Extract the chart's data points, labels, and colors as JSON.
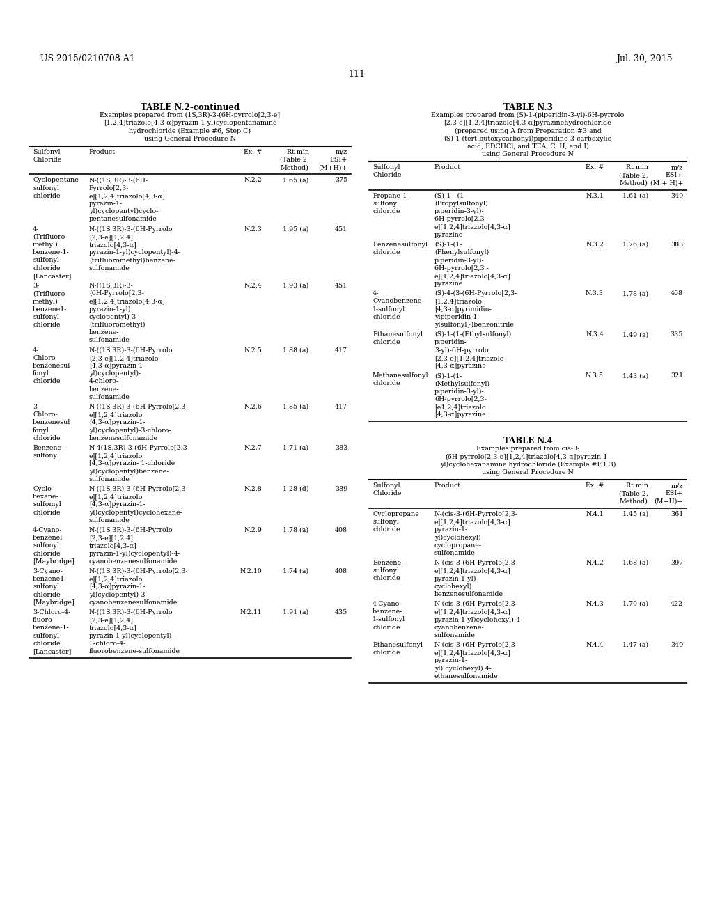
{
  "header_left": "US 2015/0210708 A1",
  "header_right": "Jul. 30, 2015",
  "page_number": "111",
  "background_color": "#ffffff",
  "text_color": "#000000",
  "font_size": 7.5,
  "table_n2_title": "TABLE N.2-continued",
  "table_n2_subtitle_lines": [
    "Examples prepared from (1S,3R)-3-(6H-pyrrolo[2,3-e]",
    "[1,2,4]triazolo[4,3-α]pyrazin-1-yl)cyclopentanamine",
    "hydrochloride (Example #6, Step C)",
    "using General Procedure N"
  ],
  "table_n2_col_headers": [
    [
      "Sulfonyl",
      "Chloride"
    ],
    [
      "Product"
    ],
    [
      "Ex. #"
    ],
    [
      "Rt min",
      "(Table 2,",
      "Method)"
    ],
    [
      "m/z",
      "ESI+",
      "(M+H)+"
    ]
  ],
  "table_n2_rows": [
    {
      "col0": [
        "Cyclopentane",
        "sulfonyl",
        "chloride"
      ],
      "col1": [
        "N-((1S,3R)-3-(6H-",
        "Pyrrolo[2,3-",
        "e][1,2,4]triazolo[4,3-α]",
        "pyrazin-1-",
        "yl)cyclopentyl)cyclo-",
        "pentanesulfonamide"
      ],
      "col2": [
        "N.2.2"
      ],
      "col3": [
        "1.65 (a)"
      ],
      "col4": [
        "375"
      ]
    },
    {
      "col0": [
        "4-",
        "(Trifluoro-",
        "methyl)",
        "benzene-1-",
        "sulfonyl",
        "chloride",
        "[Lancaster]"
      ],
      "col1": [
        "N-((1S,3R)-3-(6H-Pyrrolo",
        "[2,3-e][1,2,4]",
        "triazolo[4,3-α]",
        "pyrazin-1-yl)cyclopentyl)-4-",
        "(trifluoromethyl)benzene-",
        "sulfonamide"
      ],
      "col2": [
        "N.2.3"
      ],
      "col3": [
        "1.95 (a)"
      ],
      "col4": [
        "451"
      ]
    },
    {
      "col0": [
        "3-",
        "(Trifluoro-",
        "methyl)",
        "benzene1-",
        "sulfonyl",
        "chloride"
      ],
      "col1": [
        "N-((1S,3R)-3-",
        "(6H-Pyrrolo[2,3-",
        "e][1,2,4]triazolo[4,3-α]",
        "pyrazin-1-yl)",
        "cyclopentyl)-3-",
        "(trifluoromethyl)",
        "benzene-",
        "sulfonamide"
      ],
      "col2": [
        "N.2.4"
      ],
      "col3": [
        "1.93 (a)"
      ],
      "col4": [
        "451"
      ]
    },
    {
      "col0": [
        "4-",
        "Chloro",
        "benzenesul-",
        "fonyl",
        "chloride"
      ],
      "col1": [
        "N-((1S,3R)-3-(6H-Pyrrolo",
        "[2,3-e][1,2,4]triazolo",
        "[4,3-α]pyrazin-1-",
        "yl)cyclopentyl)-",
        "4-chloro-",
        "benzene-",
        "sulfonamide"
      ],
      "col2": [
        "N.2.5"
      ],
      "col3": [
        "1.88 (a)"
      ],
      "col4": [
        "417"
      ]
    },
    {
      "col0": [
        "3-",
        "Chloro-",
        "benzenesul",
        "fonyl",
        "chloride"
      ],
      "col1": [
        "N-((1S,3R)-3-(6H-Pyrrolo[2,3-",
        "e][1,2,4]triazolo",
        "[4,3-α]pyrazin-1-",
        "yl)cyclopentyl)-3-chloro-",
        "benzenesulfonamide"
      ],
      "col2": [
        "N.2.6"
      ],
      "col3": [
        "1.85 (a)"
      ],
      "col4": [
        "417"
      ]
    },
    {
      "col0": [
        "Benzene-",
        "sulfonyl"
      ],
      "col1": [
        "N-4(1S,3R)-3-(6H-Pyrrolo[2,3-",
        "e][1,2,4]triazolo",
        "[4,3-α]pyrazin- 1-chloride",
        "yl)cyclopentyl)benzene-",
        "sulfonamide"
      ],
      "col2": [
        "N.2.7"
      ],
      "col3": [
        "1.71 (a)"
      ],
      "col4": [
        "383"
      ]
    },
    {
      "col0": [
        "Cyclo-",
        "hexane-",
        "sulfomyl",
        "chloride"
      ],
      "col1": [
        "N-((1S,3R)-3-(6H-Pyrrolo[2,3-",
        "e][1,2,4]triazolo",
        "[4,3-α]pyrazin-1-",
        "yl)cyclopentyl)cyclohexane-",
        "sulfonamide"
      ],
      "col2": [
        "N.2.8"
      ],
      "col3": [
        "1.28 (d)"
      ],
      "col4": [
        "389"
      ]
    },
    {
      "col0": [
        "4-Cyano-",
        "benzenel",
        "sulfonyl",
        "chloride",
        "[Maybridge]"
      ],
      "col1": [
        "N-((1S,3R)-3-(6H-Pyrrolo",
        "[2,3-e][1,2,4]",
        "triazolo[4,3-α]",
        "pyrazin-1-yl)cyclopentyl)-4-",
        "cyanobenzenesulfonamide"
      ],
      "col2": [
        "N.2.9"
      ],
      "col3": [
        "1.78 (a)"
      ],
      "col4": [
        "408"
      ]
    },
    {
      "col0": [
        "3-Cyano-",
        "benzene1-",
        "sulfonyl",
        "chloride",
        "[Maybridge]"
      ],
      "col1": [
        "N-((1S,3R)-3-(6H-Pyrrolo[2,3-",
        "e][1,2,4]triazolo",
        "[4,3-α]pyrazin-1-",
        "yl)cyclopentyl)-3-",
        "cyanobenzenesulfonamide"
      ],
      "col2": [
        "N.2.10"
      ],
      "col3": [
        "1.74 (a)"
      ],
      "col4": [
        "408"
      ]
    },
    {
      "col0": [
        "3-Chloro-4-",
        "fluoro-",
        "benzene-1-",
        "sulfonyl",
        "chloride",
        "[Lancaster]"
      ],
      "col1": [
        "N-((1S,3R)-3-(6H-Pyrrolo",
        "[2,3-e][1,2,4]",
        "triazolo[4,3-α]",
        "pyrazin-1-yl)cyclopentyl)-",
        "3-chloro-4-",
        "fluorobenzene-sulfonamide"
      ],
      "col2": [
        "N.2.11"
      ],
      "col3": [
        "1.91 (a)"
      ],
      "col4": [
        "435"
      ]
    }
  ],
  "table_n3_title": "TABLE N.3",
  "table_n3_subtitle_lines": [
    "Examples prepared from (S)-1-(piperidin-3-yl)-6H-pyrrolo",
    "[2,3-e][1,2,4]triazolo[4,3-α]pyrazinehydrochloride",
    "(prepared using A from Preparation #3 and",
    "(S)-1-(tert-butoxycarbonyl)piperidine-3-carboxylic",
    "acid, EDCHCl, and TEA, C, H, and I)",
    "using General Procedure N"
  ],
  "table_n3_col_headers": [
    [
      "Sulfonyl",
      "Chloride"
    ],
    [
      "Product"
    ],
    [
      "Ex. #"
    ],
    [
      "Rt min",
      "(Table 2,",
      "Method)"
    ],
    [
      "m/z",
      "ESI+",
      "(M + H)+"
    ]
  ],
  "table_n3_rows": [
    {
      "col0": [
        "Propane-1-",
        "sulfonyl",
        "chloride"
      ],
      "col1": [
        "(S)-1 - (1 -",
        "(Propylsulfonyl)",
        "piperidin-3-yl)-",
        "6H-pyrrolo[2,3 -",
        "e][1,2,4]triazolo[4,3-α]",
        "pyrazine"
      ],
      "col2": [
        "N.3.1"
      ],
      "col3": [
        "1.61 (a)"
      ],
      "col4": [
        "349"
      ]
    },
    {
      "col0": [
        "Benzenesulfonyl",
        "chloride"
      ],
      "col1": [
        "(S)-1-(1-",
        "(Phenylsulfonyl)",
        "piperidin-3-yl)-",
        "6H-pyrrolo[2,3 -",
        "e][1,2,4]triazolo[4,3-α]",
        "pyrazine"
      ],
      "col2": [
        "N.3.2"
      ],
      "col3": [
        "1.76 (a)"
      ],
      "col4": [
        "383"
      ]
    },
    {
      "col0": [
        "4-",
        "Cyanobenzene-",
        "1-sulfonyl",
        "chloride"
      ],
      "col1": [
        "(S)-4-(3-(6H-Pyrrolo[2,3-",
        "[1,2,4]triazolo",
        "[4,3-α]pyrimidin-",
        "ylpiperidin-1-",
        "ylsulfonyl})benzonitrile"
      ],
      "col2": [
        "N.3.3"
      ],
      "col3": [
        "1.78 (a)"
      ],
      "col4": [
        "408"
      ]
    },
    {
      "col0": [
        "Ethanesulfonyl",
        "chloride"
      ],
      "col1": [
        "(S)-1-(1-(Ethylsulfonyl)",
        "piperidin-",
        "3-yl)-6H-pyrrolo",
        "[2,3-e][1,2,4]triazolo",
        "[4,3-α]pyrazine"
      ],
      "col2": [
        "N.3.4"
      ],
      "col3": [
        "1.49 (a)"
      ],
      "col4": [
        "335"
      ]
    },
    {
      "col0": [
        "Methanesulfonyl",
        "chloride"
      ],
      "col1": [
        "(S)-1-(1-",
        "(Methylsulfonyl)",
        "piperidin-3-yl)-",
        "6H-pyrrolo[2,3-",
        "[e1,2,4]triazolo",
        "[4,3-α]pyrazine"
      ],
      "col2": [
        "N.3.5"
      ],
      "col3": [
        "1.43 (a)"
      ],
      "col4": [
        "321"
      ]
    }
  ],
  "table_n4_title": "TABLE N.4",
  "table_n4_subtitle_lines": [
    "Examples prepared from cis-3-",
    "(6H-pyrrolo[2,3-e][1,2,4]triazolo[4,3-α]pyrazin-1-",
    "yl)cyclohexanamine hydrochloride (Example #F.1.3)",
    "using General Procedure N"
  ],
  "table_n4_col_headers": [
    [
      "Sulfonyl",
      "Chloride"
    ],
    [
      "Product"
    ],
    [
      "Ex. #"
    ],
    [
      "Rt min",
      "(Table 2,",
      "Method)"
    ],
    [
      "m/z",
      "ESI+",
      "(M+H)+"
    ]
  ],
  "table_n4_rows": [
    {
      "col0": [
        "Cyclopropane",
        "sulfonyl",
        "chloride"
      ],
      "col1": [
        "N-(cis-3-(6H-Pyrrolo[2,3-",
        "e][1,2,4]triazolo[4,3-α]",
        "pyrazin-1-",
        "yl)cyclohexyl)",
        "cyclopropane-",
        "sulfonamide"
      ],
      "col2": [
        "N.4.1"
      ],
      "col3": [
        "1.45 (a)"
      ],
      "col4": [
        "361"
      ]
    },
    {
      "col0": [
        "Benzene-",
        "sulfonyl",
        "chloride"
      ],
      "col1": [
        "N-(cis-3-(6H-Pyrrolo[2,3-",
        "e][1,2,4]triazolo[4,3-α]",
        "pyrazin-1-yl)",
        "cyclohexyl)",
        "benzenesulfonamide"
      ],
      "col2": [
        "N.4.2"
      ],
      "col3": [
        "1.68 (a)"
      ],
      "col4": [
        "397"
      ]
    },
    {
      "col0": [
        "4-Cyano-",
        "benzene-",
        "1-sulfonyl",
        "chloride"
      ],
      "col1": [
        "N-(cis-3-(6H-Pyrrolo[2,3-",
        "e][1,2,4]triazolo[4,3-α]",
        "pyrazin-1-yl)cyclohexyl)-4-",
        "cyanobenzene-",
        "sulfonamide"
      ],
      "col2": [
        "N.4.3"
      ],
      "col3": [
        "1.70 (a)"
      ],
      "col4": [
        "422"
      ]
    },
    {
      "col0": [
        "Ethanesulfonyl",
        "chloride"
      ],
      "col1": [
        "N-(cis-3-(6H-Pyrrolo[2,3-",
        "e][1,2,4]triazolo[4,3-α]",
        "pyrazin-1-",
        "yl) cyclohexyl) 4-",
        "ethanesulfonamide"
      ],
      "col2": [
        "N.4.4"
      ],
      "col3": [
        "1.47 (a)"
      ],
      "col4": [
        "349"
      ]
    }
  ]
}
